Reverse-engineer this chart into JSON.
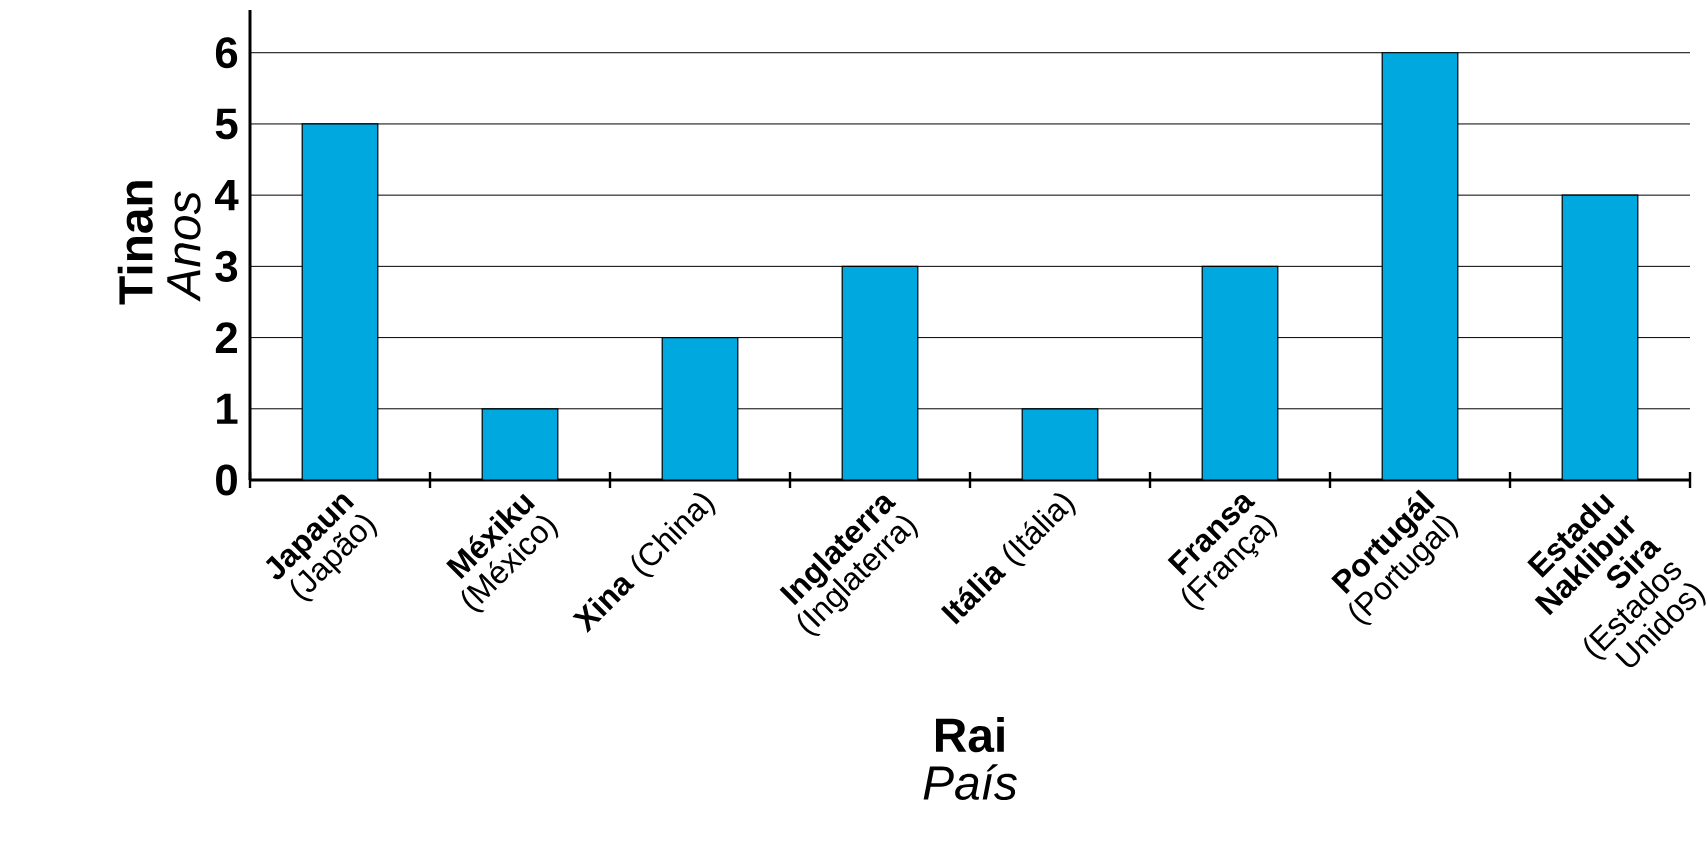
{
  "chart_data": {
    "type": "bar",
    "categories": [
      "**Japaun** (Japão)",
      "**Méxiku** (México)",
      "**Xina** (China)",
      "**Inglaterra** (Inglaterra)",
      "**Itália** (Itália)",
      "**Fransa** (França)",
      "**Portugál** (Portugal)",
      "**Estadu Naklibur Sira** (Estados Unidos)"
    ],
    "values": [
      5,
      1,
      2,
      3,
      1,
      3,
      6,
      4
    ],
    "color": "#00a8e0",
    "xlabel": "**Rai** *País*",
    "ylabel": "**Tinan** *Anos*",
    "ylim": [
      0,
      6.6
    ],
    "yticks": [
      0,
      1,
      2,
      3,
      4,
      5,
      6
    ],
    "grid": "y"
  }
}
